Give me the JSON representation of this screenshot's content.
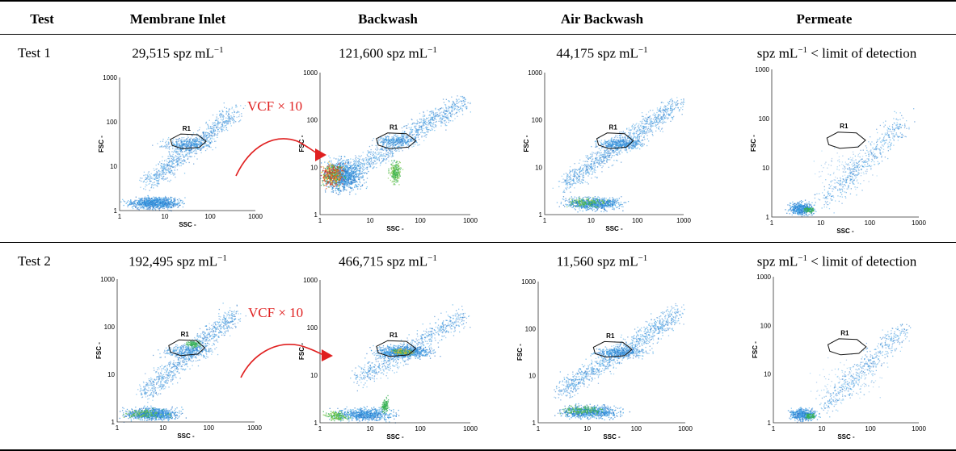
{
  "headers": [
    "Test",
    "Membrane Inlet",
    "Backwash",
    "Air Backwash",
    "Permeate"
  ],
  "rows": [
    {
      "label": "Test 1",
      "counts": [
        {
          "value": "29,515 spz mL",
          "exp": "−1",
          "suffix": ""
        },
        {
          "value": "121,600 spz mL",
          "exp": "−1",
          "suffix": ""
        },
        {
          "value": "44,175 spz mL",
          "exp": "−1",
          "suffix": ""
        },
        {
          "value": "spz mL",
          "exp": "−1",
          "suffix": " < limit of detection"
        }
      ]
    },
    {
      "label": "Test 2",
      "counts": [
        {
          "value": "192,495 spz mL",
          "exp": "−1",
          "suffix": ""
        },
        {
          "value": "466,715 spz mL",
          "exp": "−1",
          "suffix": ""
        },
        {
          "value": "11,560 spz mL",
          "exp": "−1",
          "suffix": ""
        },
        {
          "value": "spz mL",
          "exp": "−1",
          "suffix": " < limit of detection"
        }
      ]
    }
  ],
  "plot": {
    "x_axis_label": "SSC -",
    "y_axis_label": "FSC -",
    "region_label": "R1",
    "tick_labels": [
      "1",
      "10",
      "100",
      "1000"
    ]
  },
  "annotation": {
    "text": "VCF × 10",
    "color": "#e02020"
  }
}
